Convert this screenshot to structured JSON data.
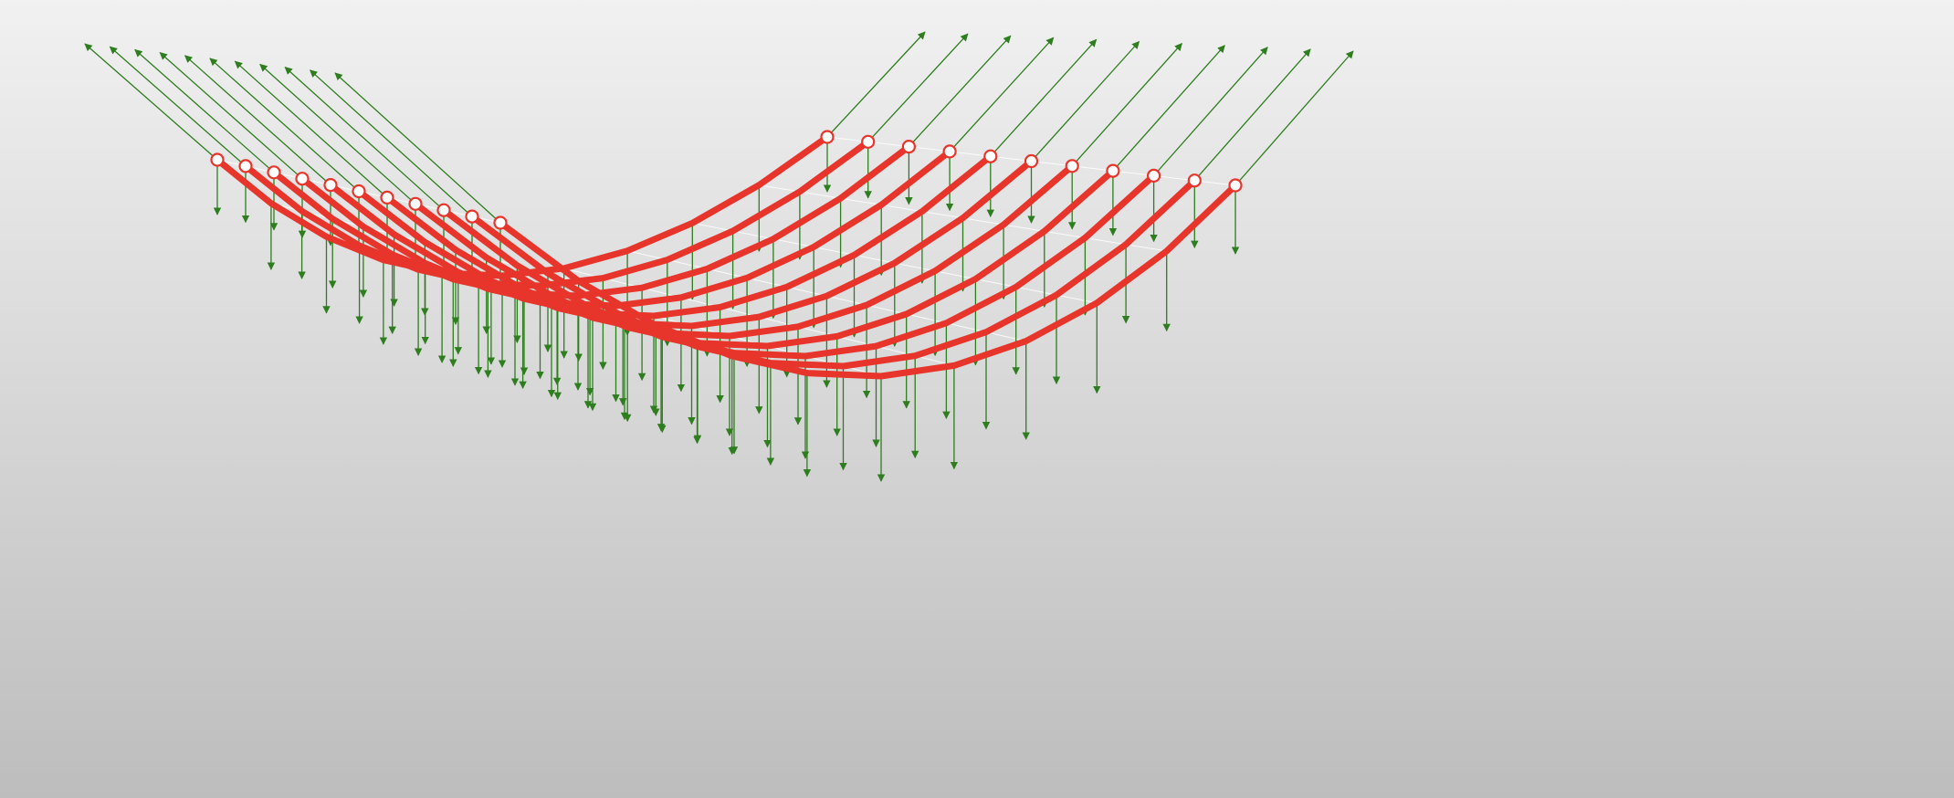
{
  "scene": {
    "description_type": "3d-cable-net-load-diagram",
    "colors": {
      "background_top": "#f1f1f1",
      "background_bottom": "#bdbdbd",
      "cable": "#e8352b",
      "cable_shade": "#c92a22",
      "load_arrow": "#2e7d1e",
      "support_node_fill": "#ffffff",
      "support_node_stroke": "#e8352b",
      "grid_line": "#ffffff"
    },
    "counts": {
      "cables": 11,
      "segments_per_cable": 10
    },
    "icons": {
      "support": "circle-node",
      "reaction": "arrow",
      "load": "arrow-down"
    }
  }
}
